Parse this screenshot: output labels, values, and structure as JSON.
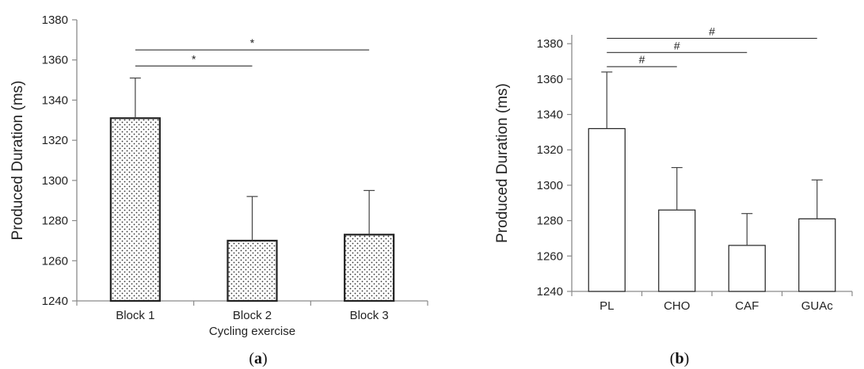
{
  "chart_data": [
    {
      "type": "bar",
      "panel_label": "a",
      "categories": [
        "Block 1",
        "Block 2",
        "Block 3"
      ],
      "values": [
        1331,
        1270,
        1273
      ],
      "error_upper": [
        1351,
        1292,
        1295
      ],
      "xlabel": "Cycling exercise",
      "ylabel": "Produced Duration (ms)",
      "ylim": [
        1240,
        1380
      ],
      "yticks": [
        1240,
        1260,
        1280,
        1300,
        1320,
        1340,
        1360,
        1380
      ],
      "bar_fill": "dotted",
      "grid": false,
      "annotations": [
        {
          "from": "Block 1",
          "to": "Block 2",
          "y": 1357,
          "text": "*"
        },
        {
          "from": "Block 1",
          "to": "Block 3",
          "y": 1365,
          "text": "*"
        }
      ]
    },
    {
      "type": "bar",
      "panel_label": "b",
      "categories": [
        "PL",
        "CHO",
        "CAF",
        "GUAc"
      ],
      "values": [
        1332,
        1286,
        1266,
        1281
      ],
      "error_upper": [
        1364,
        1310,
        1284,
        1303
      ],
      "xlabel": "",
      "ylabel": "Produced Duration (ms)",
      "ylim": [
        1240,
        1385
      ],
      "yticks": [
        1240,
        1260,
        1280,
        1300,
        1320,
        1340,
        1360,
        1380
      ],
      "bar_fill": "white",
      "grid": false,
      "annotations": [
        {
          "from": "PL",
          "to": "CHO",
          "y": 1367,
          "text": "#"
        },
        {
          "from": "PL",
          "to": "CAF",
          "y": 1375,
          "text": "#"
        },
        {
          "from": "PL",
          "to": "GUAc",
          "y": 1383,
          "text": "#"
        }
      ]
    }
  ],
  "colors": {
    "axis": "#8a8a8a",
    "bar_edge": "#222222",
    "text": "#222222"
  }
}
